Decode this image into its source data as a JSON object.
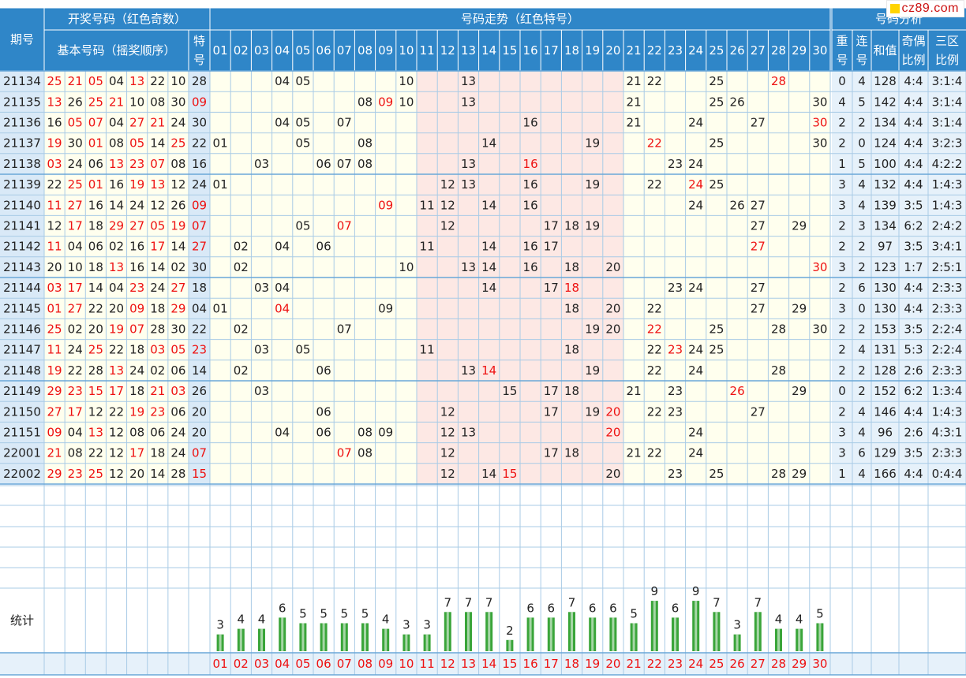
{
  "header": {
    "issue_label": "期号",
    "draw_group": "开奖号码（红色奇数）",
    "basic_label": "基本号码（摇奖顺序）",
    "special_label": "特号",
    "trend_group": "号码走势（红色特号）",
    "analysis_group": "号码分析",
    "repeat_label": "重号",
    "consec_label": "连号",
    "sum_label": "和值",
    "oddeven_label": "奇偶比例",
    "zone_label": "三区比例"
  },
  "stats_label": "统计",
  "logo_text": "cz89.com",
  "numbers": [
    "01",
    "02",
    "03",
    "04",
    "05",
    "06",
    "07",
    "08",
    "09",
    "10",
    "11",
    "12",
    "13",
    "14",
    "15",
    "16",
    "17",
    "18",
    "19",
    "20",
    "21",
    "22",
    "23",
    "24",
    "25",
    "26",
    "27",
    "28",
    "29",
    "30"
  ],
  "colors": {
    "header_bg": "#2f86c8",
    "header_text": "#ffffff",
    "issue_bg": "#d9e9f7",
    "cell_bg": "#ffffee",
    "middle_zone_bg": "#fde8e4",
    "analysis_bg": "#e6f1fa",
    "odd_text": "#ee1111",
    "normal_text": "#222222",
    "grid_line": "#a9cbe6",
    "bar_color": "#3aa53a"
  },
  "rows": [
    {
      "issue": "21134",
      "nums": [
        "25",
        "21",
        "05",
        "04",
        "13",
        "22",
        "10"
      ],
      "special": "28",
      "repeat": "0",
      "consec": "4",
      "sum": "128",
      "oddeven": "4:4",
      "zone": "3:1:4"
    },
    {
      "issue": "21135",
      "nums": [
        "13",
        "26",
        "25",
        "21",
        "10",
        "08",
        "30"
      ],
      "special": "09",
      "repeat": "4",
      "consec": "5",
      "sum": "142",
      "oddeven": "4:4",
      "zone": "3:1:4"
    },
    {
      "issue": "21136",
      "nums": [
        "16",
        "05",
        "07",
        "04",
        "27",
        "21",
        "24"
      ],
      "special": "30",
      "repeat": "2",
      "consec": "2",
      "sum": "134",
      "oddeven": "4:4",
      "zone": "3:1:4"
    },
    {
      "issue": "21137",
      "nums": [
        "19",
        "30",
        "01",
        "08",
        "05",
        "14",
        "25"
      ],
      "special": "22",
      "repeat": "2",
      "consec": "0",
      "sum": "124",
      "oddeven": "4:4",
      "zone": "3:2:3"
    },
    {
      "issue": "21138",
      "nums": [
        "03",
        "24",
        "06",
        "13",
        "23",
        "07",
        "08"
      ],
      "special": "16",
      "repeat": "1",
      "consec": "5",
      "sum": "100",
      "oddeven": "4:4",
      "zone": "4:2:2"
    },
    {
      "issue": "21139",
      "nums": [
        "22",
        "25",
        "01",
        "16",
        "19",
        "13",
        "12"
      ],
      "special": "24",
      "repeat": "3",
      "consec": "4",
      "sum": "132",
      "oddeven": "4:4",
      "zone": "1:4:3"
    },
    {
      "issue": "21140",
      "nums": [
        "11",
        "27",
        "16",
        "14",
        "24",
        "12",
        "26"
      ],
      "special": "09",
      "repeat": "3",
      "consec": "4",
      "sum": "139",
      "oddeven": "3:5",
      "zone": "1:4:3"
    },
    {
      "issue": "21141",
      "nums": [
        "12",
        "17",
        "18",
        "29",
        "27",
        "05",
        "19"
      ],
      "special": "07",
      "repeat": "2",
      "consec": "3",
      "sum": "134",
      "oddeven": "6:2",
      "zone": "2:4:2"
    },
    {
      "issue": "21142",
      "nums": [
        "11",
        "04",
        "06",
        "02",
        "16",
        "17",
        "14"
      ],
      "special": "27",
      "repeat": "2",
      "consec": "2",
      "sum": "97",
      "oddeven": "3:5",
      "zone": "3:4:1"
    },
    {
      "issue": "21143",
      "nums": [
        "20",
        "10",
        "18",
        "13",
        "16",
        "14",
        "02"
      ],
      "special": "30",
      "repeat": "3",
      "consec": "2",
      "sum": "123",
      "oddeven": "1:7",
      "zone": "2:5:1"
    },
    {
      "issue": "21144",
      "nums": [
        "03",
        "17",
        "14",
        "04",
        "23",
        "24",
        "27"
      ],
      "special": "18",
      "repeat": "2",
      "consec": "6",
      "sum": "130",
      "oddeven": "4:4",
      "zone": "2:3:3"
    },
    {
      "issue": "21145",
      "nums": [
        "01",
        "27",
        "22",
        "20",
        "09",
        "18",
        "29"
      ],
      "special": "04",
      "repeat": "3",
      "consec": "0",
      "sum": "130",
      "oddeven": "4:4",
      "zone": "2:3:3"
    },
    {
      "issue": "21146",
      "nums": [
        "25",
        "02",
        "20",
        "19",
        "07",
        "28",
        "30"
      ],
      "special": "22",
      "repeat": "2",
      "consec": "2",
      "sum": "153",
      "oddeven": "3:5",
      "zone": "2:2:4"
    },
    {
      "issue": "21147",
      "nums": [
        "11",
        "24",
        "25",
        "22",
        "18",
        "03",
        "05"
      ],
      "special": "23",
      "repeat": "2",
      "consec": "4",
      "sum": "131",
      "oddeven": "5:3",
      "zone": "2:2:4"
    },
    {
      "issue": "21148",
      "nums": [
        "19",
        "22",
        "28",
        "13",
        "24",
        "02",
        "06"
      ],
      "special": "14",
      "repeat": "2",
      "consec": "2",
      "sum": "128",
      "oddeven": "2:6",
      "zone": "2:3:3"
    },
    {
      "issue": "21149",
      "nums": [
        "29",
        "23",
        "15",
        "17",
        "18",
        "21",
        "03"
      ],
      "special": "26",
      "repeat": "0",
      "consec": "2",
      "sum": "152",
      "oddeven": "6:2",
      "zone": "1:3:4"
    },
    {
      "issue": "21150",
      "nums": [
        "27",
        "17",
        "12",
        "22",
        "19",
        "23",
        "06"
      ],
      "special": "20",
      "repeat": "2",
      "consec": "4",
      "sum": "146",
      "oddeven": "4:4",
      "zone": "1:4:3"
    },
    {
      "issue": "21151",
      "nums": [
        "09",
        "04",
        "13",
        "12",
        "08",
        "06",
        "24"
      ],
      "special": "20",
      "repeat": "3",
      "consec": "4",
      "sum": "96",
      "oddeven": "2:6",
      "zone": "4:3:1"
    },
    {
      "issue": "22001",
      "nums": [
        "21",
        "08",
        "22",
        "12",
        "17",
        "18",
        "24"
      ],
      "special": "07",
      "repeat": "3",
      "consec": "6",
      "sum": "129",
      "oddeven": "3:5",
      "zone": "2:3:3"
    },
    {
      "issue": "22002",
      "nums": [
        "29",
        "23",
        "25",
        "12",
        "20",
        "14",
        "28"
      ],
      "special": "15",
      "repeat": "1",
      "consec": "4",
      "sum": "166",
      "oddeven": "4:4",
      "zone": "0:4:4"
    }
  ],
  "chart_data": {
    "type": "bar",
    "categories": [
      "01",
      "02",
      "03",
      "04",
      "05",
      "06",
      "07",
      "08",
      "09",
      "10",
      "11",
      "12",
      "13",
      "14",
      "15",
      "16",
      "17",
      "18",
      "19",
      "20",
      "21",
      "22",
      "23",
      "24",
      "25",
      "26",
      "27",
      "28",
      "29",
      "30"
    ],
    "values": [
      3,
      4,
      4,
      6,
      5,
      5,
      5,
      5,
      4,
      3,
      3,
      7,
      7,
      7,
      2,
      6,
      6,
      7,
      6,
      6,
      5,
      9,
      6,
      9,
      7,
      3,
      7,
      4,
      4,
      5
    ],
    "title": "统计",
    "xlabel": "",
    "ylabel": "",
    "grid": true,
    "legend": "none"
  }
}
